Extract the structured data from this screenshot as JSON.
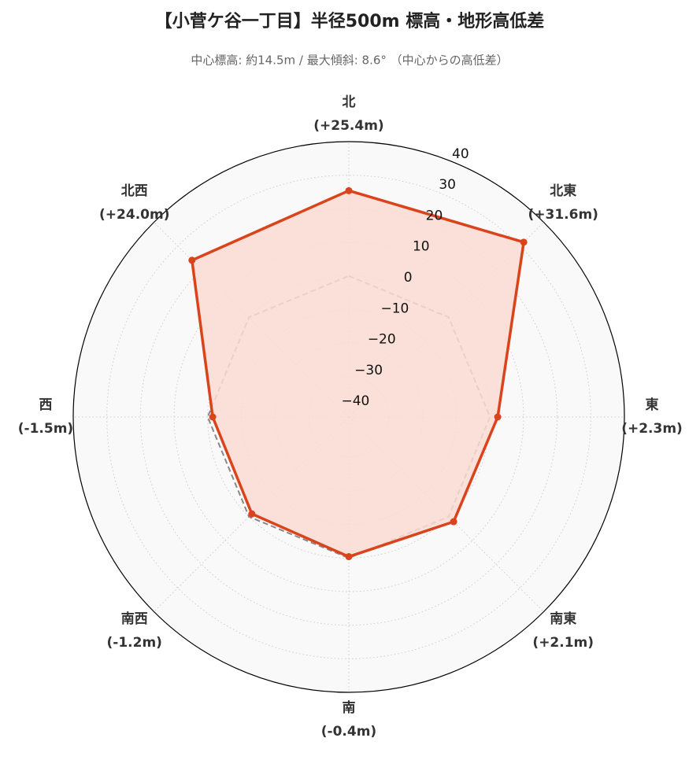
{
  "chart_data": {
    "type": "radar",
    "title": "【小菅ケ谷一丁目】半径500m 標高・地形高低差",
    "subtitle": "中心標高: 約14.5m / 最大傾斜: 8.6° （中心からの高低差）",
    "categories": [
      "北",
      "北東",
      "東",
      "南東",
      "南",
      "南西",
      "西",
      "北西"
    ],
    "values": [
      25.4,
      31.6,
      2.3,
      2.1,
      -0.4,
      -1.2,
      -1.5,
      24.0
    ],
    "value_labels": [
      "(+25.4m)",
      "(+31.6m)",
      "(+2.3m)",
      "(+2.1m)",
      "(-0.4m)",
      "(-1.2m)",
      "(-1.5m)",
      "(+24.0m)"
    ],
    "color": "#d9441c",
    "fill_color": "#fbdcd4",
    "baseline": 0,
    "baseline_color": "#888888",
    "ylim": [
      -42,
      40
    ],
    "yticks": [
      {
        "value": -40,
        "label": "−40"
      },
      {
        "value": -30,
        "label": "−30"
      },
      {
        "value": -20,
        "label": "−20"
      },
      {
        "value": -10,
        "label": "−10"
      },
      0,
      10,
      20,
      30,
      40
    ],
    "grid": true
  }
}
